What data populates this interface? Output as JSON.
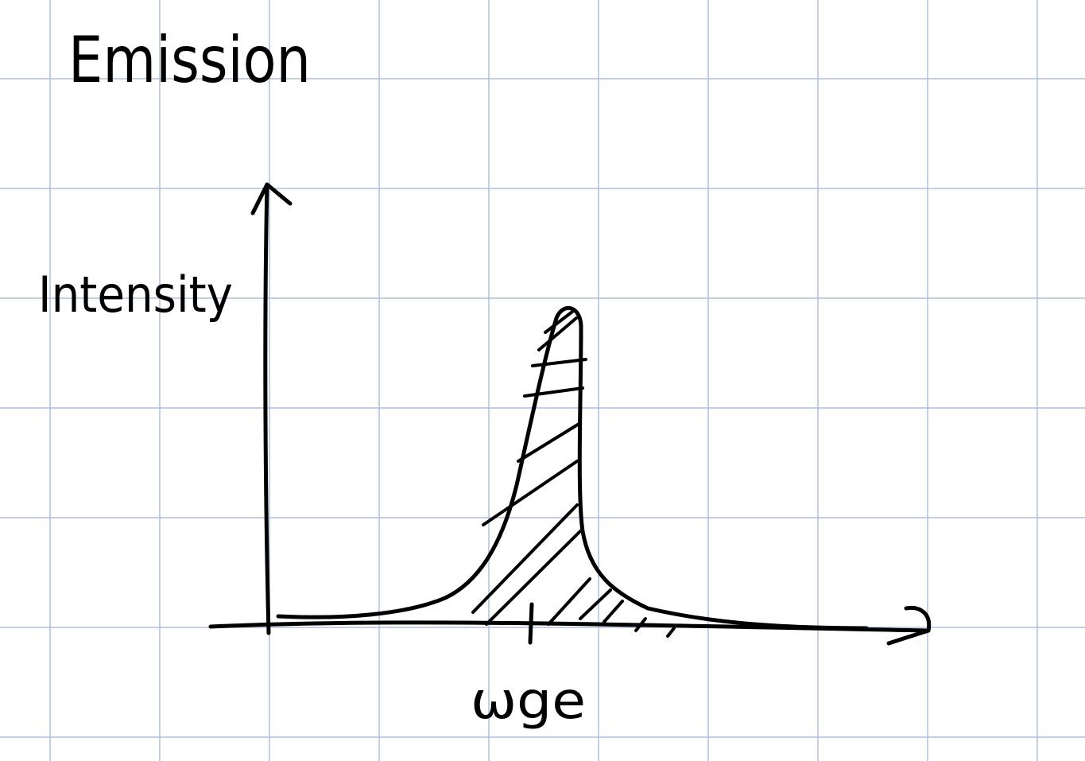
{
  "page": {
    "title": "Emission",
    "y_axis_label": "Intensity",
    "x_marker_label": "ωge"
  },
  "colors": {
    "background": "#ffffff",
    "grid": "#aebfdc",
    "ink": "#000000"
  }
}
